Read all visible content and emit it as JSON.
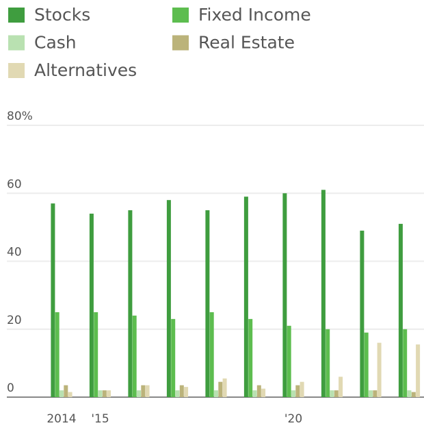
{
  "chart_data": {
    "type": "bar",
    "categories": [
      "2014",
      "'15",
      null,
      null,
      null,
      null,
      "'20",
      null,
      null,
      null
    ],
    "series": [
      {
        "name": "Stocks",
        "color": "#3f9d3f",
        "values": [
          57,
          54,
          55,
          58,
          55,
          59,
          60,
          61,
          49,
          51
        ]
      },
      {
        "name": "Fixed Income",
        "color": "#5dbd4f",
        "values": [
          25,
          25,
          24,
          23,
          25,
          23,
          21,
          20,
          19,
          20
        ]
      },
      {
        "name": "Cash",
        "color": "#b9e1b1",
        "values": [
          2,
          2,
          2,
          2,
          2,
          2,
          2,
          2,
          2,
          2
        ]
      },
      {
        "name": "Real Estate",
        "color": "#bbb37a",
        "values": [
          3.5,
          2,
          3.5,
          3.5,
          4.5,
          3.5,
          3.5,
          2,
          2,
          1.5
        ]
      },
      {
        "name": "Alternatives",
        "color": "#e1d9b3",
        "values": [
          1.5,
          2,
          3.5,
          3,
          5.5,
          2.5,
          4.5,
          6,
          16,
          15.5
        ]
      }
    ],
    "ylim": [
      0,
      80
    ],
    "yticks": [
      0,
      20,
      40,
      60,
      {
        "value": 80,
        "label": "80%"
      }
    ],
    "grid": true
  }
}
